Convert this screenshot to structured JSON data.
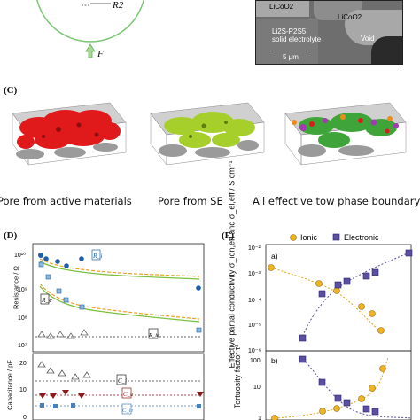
{
  "panel_a": {
    "label": "R2",
    "force_label": "F"
  },
  "panel_b": {
    "labels": [
      "LiCoO2",
      "LiCoO2",
      "Li2S-P2S5",
      "solid electrolyte",
      "Void"
    ],
    "scale_bar": "5 μm"
  },
  "panel_c": {
    "letter": "(C)",
    "captions": [
      "Pore from active materials",
      "Pore from SE",
      "All effective tow phase boundary"
    ]
  },
  "panel_d": {
    "letter": "(D)",
    "resistance_ylabel": "Resistance / Ω",
    "capacitance_ylabel": "Capacitance / pF",
    "resistance_ticks": [
      "10¹⁰",
      "10⁹",
      "10⁸",
      "10⁷"
    ],
    "capacitance_ticks": [
      "20",
      "10",
      "0"
    ],
    "legend": [
      "R_i",
      "R_e",
      "R_ie",
      "C_i",
      "C_e",
      "C_ie"
    ]
  },
  "panel_f": {
    "letter": "(F)",
    "legend_ionic": "Ionic",
    "legend_electronic": "Electronic",
    "sub_a": "a)",
    "sub_b": "b)",
    "ylabel_top": "Effective partial conductivity σ_ion,eff and σ_el,eff / S cm⁻¹",
    "ylabel_bottom": "Tortuosity factor τ²",
    "top_ticks": [
      "10⁻²",
      "10⁻³",
      "10⁻⁴",
      "10⁻⁵",
      "10⁻⁶"
    ],
    "bottom_ticks": [
      "100",
      "10",
      "1"
    ],
    "colors": {
      "ionic": "#f0b323",
      "electronic": "#5a4fa0"
    }
  }
}
